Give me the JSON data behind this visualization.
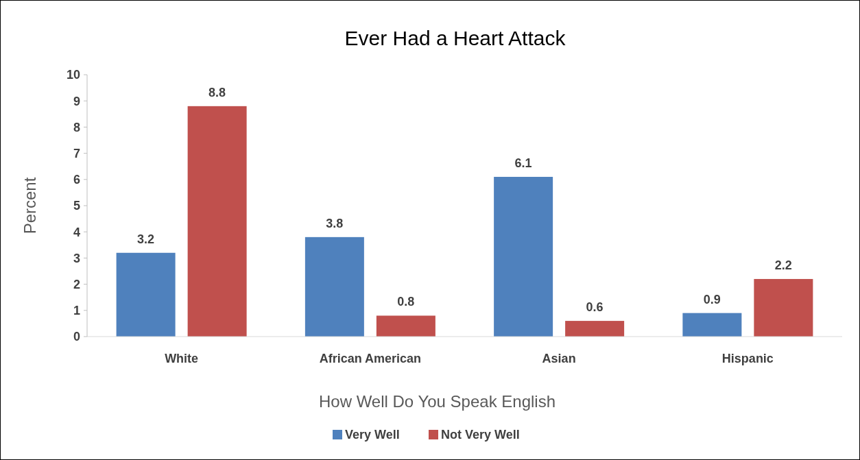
{
  "chart_data": {
    "type": "bar",
    "title": "Ever Had a Heart Attack",
    "xlabel": "How Well Do You Speak English",
    "ylabel": "Percent",
    "categories": [
      "White",
      "African American",
      "Asian",
      "Hispanic"
    ],
    "series": [
      {
        "name": "Very Well",
        "color": "#4f81bd",
        "values": [
          3.2,
          3.8,
          6.1,
          0.9
        ]
      },
      {
        "name": "Not Very Well",
        "color": "#c0504d",
        "values": [
          8.8,
          0.8,
          0.6,
          2.2
        ]
      }
    ],
    "ylim": [
      0,
      10
    ],
    "yticks": [
      0,
      1,
      2,
      3,
      4,
      5,
      6,
      7,
      8,
      9,
      10
    ],
    "data_labels": true,
    "legend": "bottom",
    "grid": false
  }
}
